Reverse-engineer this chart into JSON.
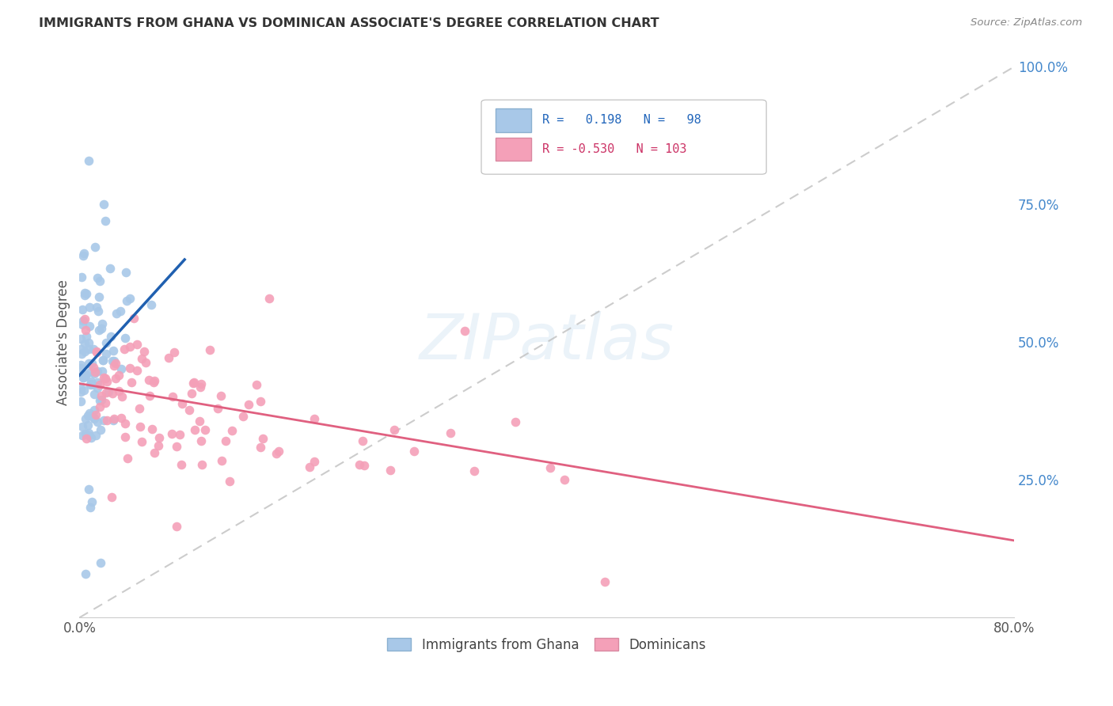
{
  "title": "IMMIGRANTS FROM GHANA VS DOMINICAN ASSOCIATE'S DEGREE CORRELATION CHART",
  "source": "Source: ZipAtlas.com",
  "ylabel": "Associate's Degree",
  "right_yticks": [
    "100.0%",
    "75.0%",
    "50.0%",
    "25.0%"
  ],
  "right_ytick_vals": [
    1.0,
    0.75,
    0.5,
    0.25
  ],
  "ghana_R": 0.198,
  "ghana_N": 98,
  "dominican_R": -0.53,
  "dominican_N": 103,
  "ghana_color": "#a8c8e8",
  "dominican_color": "#f4a0b8",
  "ghana_line_color": "#2060b0",
  "dominican_line_color": "#e06080",
  "diagonal_color": "#c0c0c0",
  "background_color": "#ffffff",
  "xlim": [
    0.0,
    0.8
  ],
  "ylim": [
    0.0,
    1.0
  ],
  "ghana_line_x0": 0.0,
  "ghana_line_y0": 0.44,
  "ghana_line_x1": 0.09,
  "ghana_line_y1": 0.65,
  "dominican_line_x0": 0.0,
  "dominican_line_y0": 0.425,
  "dominican_line_x1": 0.8,
  "dominican_line_y1": 0.14
}
